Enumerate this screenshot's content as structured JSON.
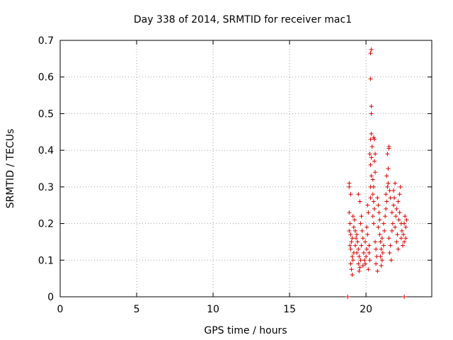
{
  "chart_data": {
    "type": "scatter",
    "title": "Day 338 of 2014, SRMTID for receiver mac1",
    "xlabel": "GPS time / hours",
    "ylabel": "SRMTID / TECUs",
    "xlim": [
      0,
      24.3
    ],
    "ylim": [
      0,
      0.7
    ],
    "xticks": [
      0,
      5,
      10,
      15,
      20
    ],
    "yticks": [
      0,
      0.1,
      0.2,
      0.3,
      0.4,
      0.5,
      0.6,
      0.7
    ],
    "ytick_labels": [
      "0",
      "0.1",
      "0.2",
      "0.3",
      "0.4",
      "0.5",
      "0.6",
      "0.7"
    ],
    "grid": true,
    "marker": "+",
    "color": "#e00000",
    "series": [
      {
        "name": "mac1",
        "points": [
          [
            18.8,
            0.0
          ],
          [
            22.5,
            0.0
          ],
          [
            18.9,
            0.31
          ],
          [
            18.9,
            0.3
          ],
          [
            19.0,
            0.28
          ],
          [
            18.9,
            0.23
          ],
          [
            18.95,
            0.2
          ],
          [
            18.9,
            0.18
          ],
          [
            19.0,
            0.17
          ],
          [
            19.05,
            0.15
          ],
          [
            18.95,
            0.14
          ],
          [
            19.0,
            0.13
          ],
          [
            19.1,
            0.11
          ],
          [
            19.0,
            0.09
          ],
          [
            19.1,
            0.06
          ],
          [
            19.05,
            0.075
          ],
          [
            19.15,
            0.1
          ],
          [
            19.2,
            0.12
          ],
          [
            19.1,
            0.16
          ],
          [
            19.2,
            0.19
          ],
          [
            19.25,
            0.21
          ],
          [
            19.3,
            0.18
          ],
          [
            19.15,
            0.22
          ],
          [
            19.35,
            0.16
          ],
          [
            19.3,
            0.14
          ],
          [
            19.4,
            0.17
          ],
          [
            19.45,
            0.15
          ],
          [
            19.5,
            0.13
          ],
          [
            19.4,
            0.12
          ],
          [
            19.55,
            0.11
          ],
          [
            19.5,
            0.09
          ],
          [
            19.6,
            0.08
          ],
          [
            19.55,
            0.07
          ],
          [
            19.65,
            0.1
          ],
          [
            19.6,
            0.26
          ],
          [
            19.5,
            0.28
          ],
          [
            19.7,
            0.22
          ],
          [
            19.65,
            0.2
          ],
          [
            19.75,
            0.18
          ],
          [
            19.8,
            0.16
          ],
          [
            19.7,
            0.14
          ],
          [
            19.85,
            0.12
          ],
          [
            19.9,
            0.1
          ],
          [
            19.8,
            0.085
          ],
          [
            19.95,
            0.09
          ],
          [
            20.0,
            0.11
          ],
          [
            20.05,
            0.13
          ],
          [
            19.95,
            0.15
          ],
          [
            20.1,
            0.17
          ],
          [
            20.05,
            0.19
          ],
          [
            20.15,
            0.23
          ],
          [
            20.1,
            0.25
          ],
          [
            20.2,
            0.14
          ],
          [
            20.2,
            0.12
          ],
          [
            20.25,
            0.1
          ],
          [
            20.15,
            0.075
          ],
          [
            20.3,
            0.27
          ],
          [
            20.3,
            0.3
          ],
          [
            20.35,
            0.33
          ],
          [
            20.3,
            0.36
          ],
          [
            20.25,
            0.39
          ],
          [
            20.3,
            0.43
          ],
          [
            20.35,
            0.445
          ],
          [
            20.4,
            0.41
          ],
          [
            20.35,
            0.38
          ],
          [
            20.35,
            0.5
          ],
          [
            20.35,
            0.52
          ],
          [
            20.3,
            0.595
          ],
          [
            20.3,
            0.665
          ],
          [
            20.35,
            0.675
          ],
          [
            20.45,
            0.32
          ],
          [
            20.5,
            0.3
          ],
          [
            20.45,
            0.28
          ],
          [
            20.5,
            0.26
          ],
          [
            20.55,
            0.24
          ],
          [
            20.45,
            0.22
          ],
          [
            20.5,
            0.2
          ],
          [
            20.55,
            0.43
          ],
          [
            20.5,
            0.435
          ],
          [
            20.6,
            0.39
          ],
          [
            20.55,
            0.37
          ],
          [
            20.6,
            0.34
          ],
          [
            20.6,
            0.15
          ],
          [
            20.65,
            0.13
          ],
          [
            20.7,
            0.11
          ],
          [
            20.65,
            0.09
          ],
          [
            20.75,
            0.07
          ],
          [
            20.8,
            0.25
          ],
          [
            20.75,
            0.27
          ],
          [
            20.85,
            0.23
          ],
          [
            20.9,
            0.21
          ],
          [
            20.8,
            0.19
          ],
          [
            20.9,
            0.17
          ],
          [
            20.95,
            0.15
          ],
          [
            21.0,
            0.13
          ],
          [
            20.95,
            0.11
          ],
          [
            21.05,
            0.1
          ],
          [
            21.0,
            0.085
          ],
          [
            21.1,
            0.12
          ],
          [
            21.15,
            0.14
          ],
          [
            21.05,
            0.16
          ],
          [
            21.2,
            0.18
          ],
          [
            21.15,
            0.2
          ],
          [
            21.25,
            0.22
          ],
          [
            21.3,
            0.24
          ],
          [
            21.35,
            0.26
          ],
          [
            21.3,
            0.28
          ],
          [
            21.4,
            0.3
          ],
          [
            21.35,
            0.33
          ],
          [
            21.45,
            0.35
          ],
          [
            21.4,
            0.39
          ],
          [
            21.5,
            0.41
          ],
          [
            21.5,
            0.405
          ],
          [
            21.45,
            0.31
          ],
          [
            21.55,
            0.29
          ],
          [
            21.6,
            0.27
          ],
          [
            21.5,
            0.16
          ],
          [
            21.6,
            0.14
          ],
          [
            21.55,
            0.12
          ],
          [
            21.65,
            0.1
          ],
          [
            21.7,
            0.18
          ],
          [
            21.75,
            0.2
          ],
          [
            21.7,
            0.23
          ],
          [
            21.8,
            0.25
          ],
          [
            21.85,
            0.27
          ],
          [
            21.8,
            0.29
          ],
          [
            21.9,
            0.31
          ],
          [
            21.95,
            0.22
          ],
          [
            22.0,
            0.24
          ],
          [
            21.9,
            0.19
          ],
          [
            22.05,
            0.17
          ],
          [
            22.0,
            0.15
          ],
          [
            22.1,
            0.13
          ],
          [
            22.15,
            0.21
          ],
          [
            22.1,
            0.26
          ],
          [
            22.2,
            0.28
          ],
          [
            22.25,
            0.3
          ],
          [
            22.2,
            0.23
          ],
          [
            22.3,
            0.2
          ],
          [
            22.35,
            0.18
          ],
          [
            22.3,
            0.16
          ],
          [
            22.4,
            0.14
          ],
          [
            22.45,
            0.17
          ],
          [
            22.5,
            0.2
          ],
          [
            22.55,
            0.22
          ],
          [
            22.6,
            0.19
          ],
          [
            22.5,
            0.15
          ],
          [
            22.6,
            0.16
          ],
          [
            22.65,
            0.21
          ]
        ]
      }
    ]
  }
}
